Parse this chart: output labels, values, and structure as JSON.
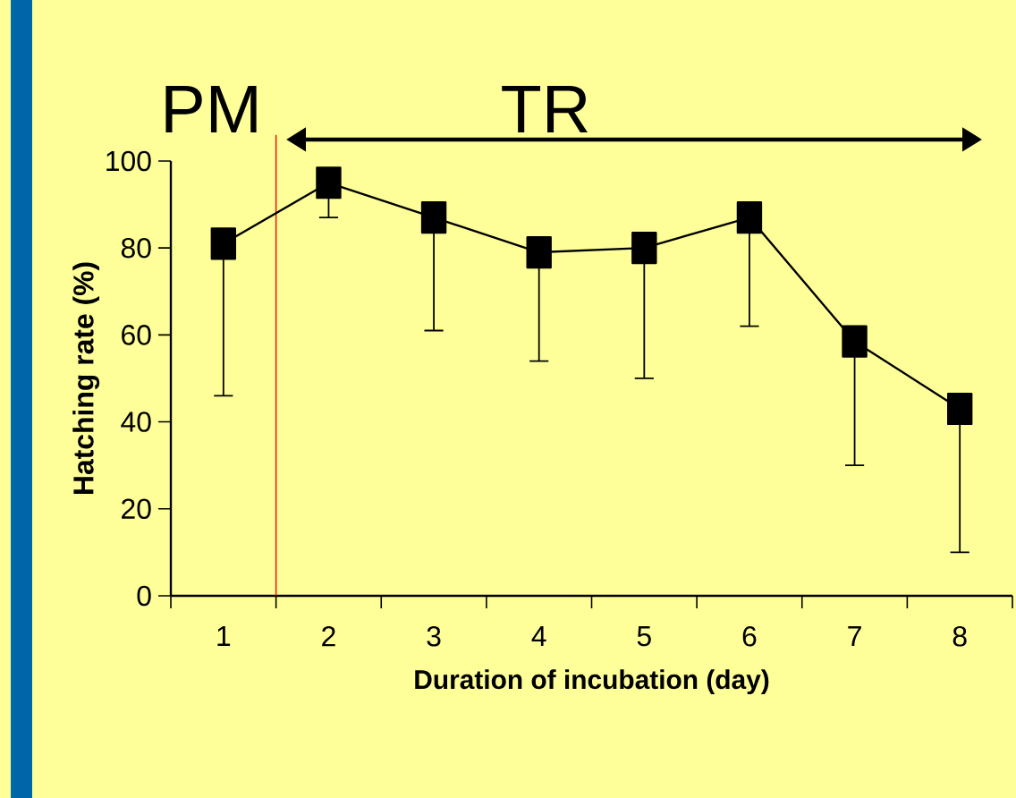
{
  "chart_data": {
    "type": "line",
    "xlabel": "Duration of incubation (day)",
    "ylabel": "Hatching rate (%)",
    "x": [
      1,
      2,
      3,
      4,
      5,
      6,
      7,
      8
    ],
    "values": [
      81,
      95,
      87,
      79,
      80,
      87,
      58.5,
      43
    ],
    "errors": [
      [
        46,
        81
      ],
      [
        87,
        95
      ],
      [
        61,
        87
      ],
      [
        54,
        79
      ],
      [
        50,
        80
      ],
      [
        62,
        87
      ],
      [
        30,
        58.5
      ],
      [
        10,
        43
      ]
    ],
    "color": "#000000",
    "marker": "square",
    "line_style": "solid",
    "xlim": [
      0.5,
      8.5
    ],
    "xticks": [
      {
        "value": 0.5,
        "label": null
      },
      1,
      {
        "value": 1.5,
        "label": null
      },
      2,
      {
        "value": 2.5,
        "label": null
      },
      3,
      {
        "value": 3.5,
        "label": null
      },
      4,
      {
        "value": 4.5,
        "label": null
      },
      5,
      {
        "value": 5.5,
        "label": null
      },
      6,
      {
        "value": 6.5,
        "label": null
      },
      7,
      {
        "value": 7.5,
        "label": null
      },
      8,
      {
        "value": 8.5,
        "label": null
      }
    ],
    "ylim": [
      0,
      100
    ],
    "yticks": [
      0,
      20,
      40,
      60,
      80,
      100
    ],
    "ref_lines": [
      {
        "axis": "x",
        "value": 1.5,
        "color": "#ff0000"
      }
    ],
    "annotations": [
      "PM",
      "TR"
    ],
    "grid": false
  }
}
